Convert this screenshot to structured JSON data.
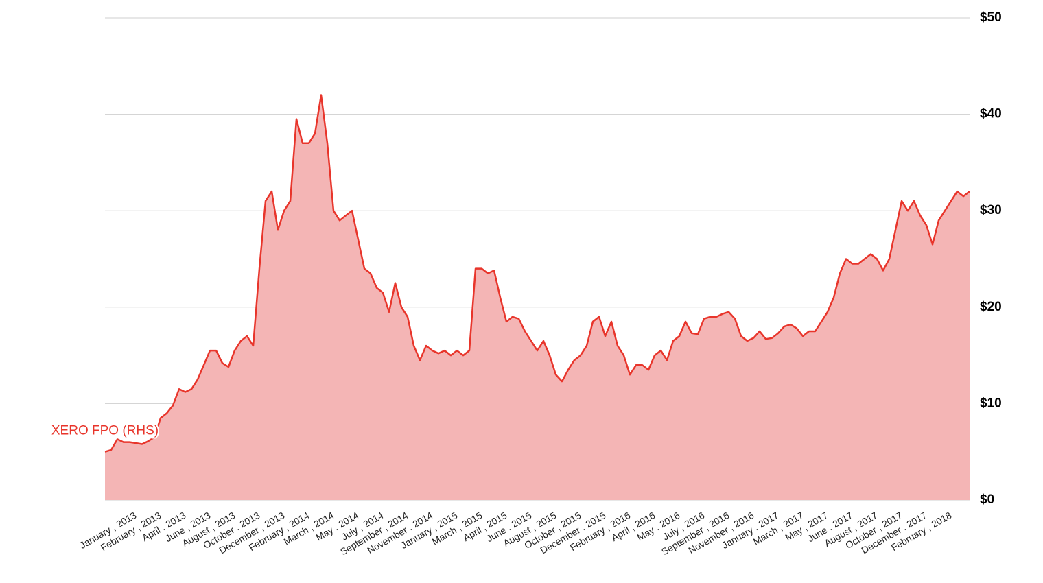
{
  "chart_data": {
    "type": "area",
    "categories": [
      null,
      null,
      null,
      null,
      null,
      "January , 2013",
      null,
      null,
      null,
      "February , 2013",
      null,
      null,
      null,
      "April , 2013",
      null,
      null,
      null,
      "June , 2013",
      null,
      null,
      null,
      "August , 2013",
      null,
      null,
      null,
      "October , 2013",
      null,
      null,
      null,
      "December , 2013",
      null,
      null,
      null,
      "February , 2014",
      null,
      null,
      null,
      "March , 2014",
      null,
      null,
      null,
      "May , 2014",
      null,
      null,
      null,
      "July , 2014",
      null,
      null,
      null,
      "September , 2014",
      null,
      null,
      null,
      "November , 2014",
      null,
      null,
      null,
      "January , 2015",
      null,
      null,
      null,
      "March , 2015",
      null,
      null,
      null,
      "April , 2015",
      null,
      null,
      null,
      "June , 2015",
      null,
      null,
      null,
      "August , 2015",
      null,
      null,
      null,
      "October , 2015",
      null,
      null,
      null,
      "December , 2015",
      null,
      null,
      null,
      "February , 2016",
      null,
      null,
      null,
      "April , 2016",
      null,
      null,
      null,
      "May , 2016",
      null,
      null,
      null,
      "July , 2016",
      null,
      null,
      null,
      "September , 2016",
      null,
      null,
      null,
      "November , 2016",
      null,
      null,
      null,
      "January , 2017",
      null,
      null,
      null,
      "March , 2017",
      null,
      null,
      null,
      "May , 2017",
      null,
      null,
      null,
      "June , 2017",
      null,
      null,
      null,
      "August , 2017",
      null,
      null,
      null,
      "October , 2017",
      null,
      null,
      null,
      "December , 2017",
      null,
      null,
      null,
      "February , 2018",
      null,
      null,
      null
    ],
    "series": [
      {
        "name": "XERO FPO (RHS)",
        "color": "#e8352b",
        "fill": "#f4b5b5",
        "axis": "y2",
        "values": [
          5,
          5.2,
          6.3,
          6,
          6,
          5.9,
          5.8,
          6.1,
          6.5,
          8.5,
          9,
          9.8,
          11.5,
          11.2,
          11.5,
          12.5,
          14,
          15.5,
          15.5,
          14.2,
          13.8,
          15.5,
          16.5,
          17,
          16,
          24,
          31,
          32,
          28,
          30,
          31,
          39.5,
          37,
          37,
          38,
          42,
          37,
          30,
          29,
          29.5,
          30,
          27,
          24,
          23.5,
          22,
          21.5,
          19.5,
          22.5,
          20,
          19,
          16,
          14.5,
          16,
          15.5,
          15.2,
          15.5,
          15,
          15.5,
          15,
          15.5,
          24,
          24,
          23.5,
          23.8,
          21,
          18.5,
          19,
          18.8,
          17.5,
          16.5,
          15.5,
          16.5,
          15,
          13,
          12.3,
          13.5,
          14.5,
          15,
          16,
          18.5,
          19,
          17,
          18.5,
          16,
          15,
          13,
          14,
          14,
          13.5,
          15,
          15.5,
          14.5,
          16.5,
          17,
          18.5,
          17.3,
          17.2,
          18.8,
          19,
          19,
          19.3,
          19.5,
          18.8,
          17,
          16.5,
          16.8,
          17.5,
          16.7,
          16.8,
          17.3,
          18,
          18.2,
          17.8,
          17,
          17.5,
          17.5,
          18.5,
          19.5,
          21,
          23.5,
          25,
          24.5,
          24.5,
          25,
          25.5,
          25,
          23.8,
          25,
          28,
          31,
          30,
          31,
          29.5,
          28.5,
          26.5,
          29,
          30,
          31,
          32,
          31.5,
          32
        ]
      }
    ],
    "y2lim": [
      0,
      50
    ],
    "y2ticks": [
      {
        "value": 0,
        "label": "$0"
      },
      {
        "value": 10,
        "label": "$10"
      },
      {
        "value": 20,
        "label": "$20"
      },
      {
        "value": 30,
        "label": "$30"
      },
      {
        "value": 40,
        "label": "$40"
      },
      {
        "value": 50,
        "label": "$50"
      }
    ],
    "grid": true
  }
}
